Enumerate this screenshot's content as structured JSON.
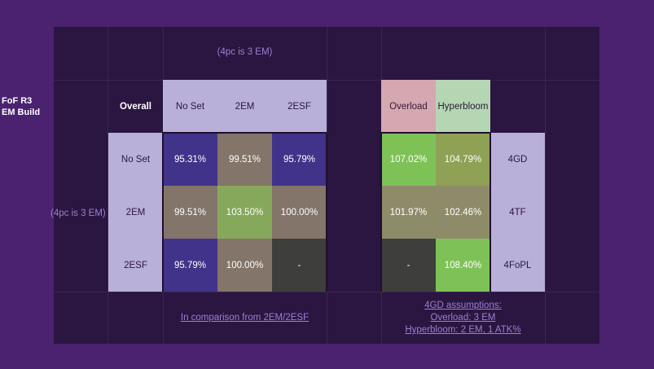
{
  "title": {
    "line1": "FoF R3",
    "line2": "EM Build"
  },
  "top_note": "(4pc is 3 EM)",
  "side_note": "(4pc is 3 EM)",
  "col_headers": {
    "overall": "Overall",
    "no_set": "No Set",
    "em2": "2EM",
    "esf2": "2ESF",
    "overload": "Overload",
    "hyperbloom": "Hyperbloom"
  },
  "row_headers": {
    "no_set": "No Set",
    "em2": "2EM",
    "esf2": "2ESF"
  },
  "right_labels": {
    "r1": "4GD",
    "r2": "4TF",
    "r3": "4FoPL"
  },
  "matrix": {
    "r1": {
      "no_set": "95.31%",
      "em2": "99.51%",
      "esf2": "95.79%",
      "overload": "107.02%",
      "hyperbloom": "104.79%"
    },
    "r2": {
      "no_set": "99.51%",
      "em2": "103.50%",
      "esf2": "100.00%",
      "overload": "101.97%",
      "hyperbloom": "102.46%"
    },
    "r3": {
      "no_set": "95.79%",
      "em2": "100.00%",
      "esf2": "-",
      "overload": "-",
      "hyperbloom": "108.40%"
    }
  },
  "footer": {
    "comparison": "In comparison from 2EM/2ESF",
    "assumptions_line1": "4GD assumptions:",
    "assumptions_line2": "Overload: 3 EM",
    "assumptions_line3": "Hyperbloom: 2 EM, 1 ATK%"
  },
  "colors": {
    "background": "#4a2270",
    "sheet": "#2a1640",
    "header_lavender": "#b9b0d9",
    "accent_text": "#9d7fd3"
  }
}
